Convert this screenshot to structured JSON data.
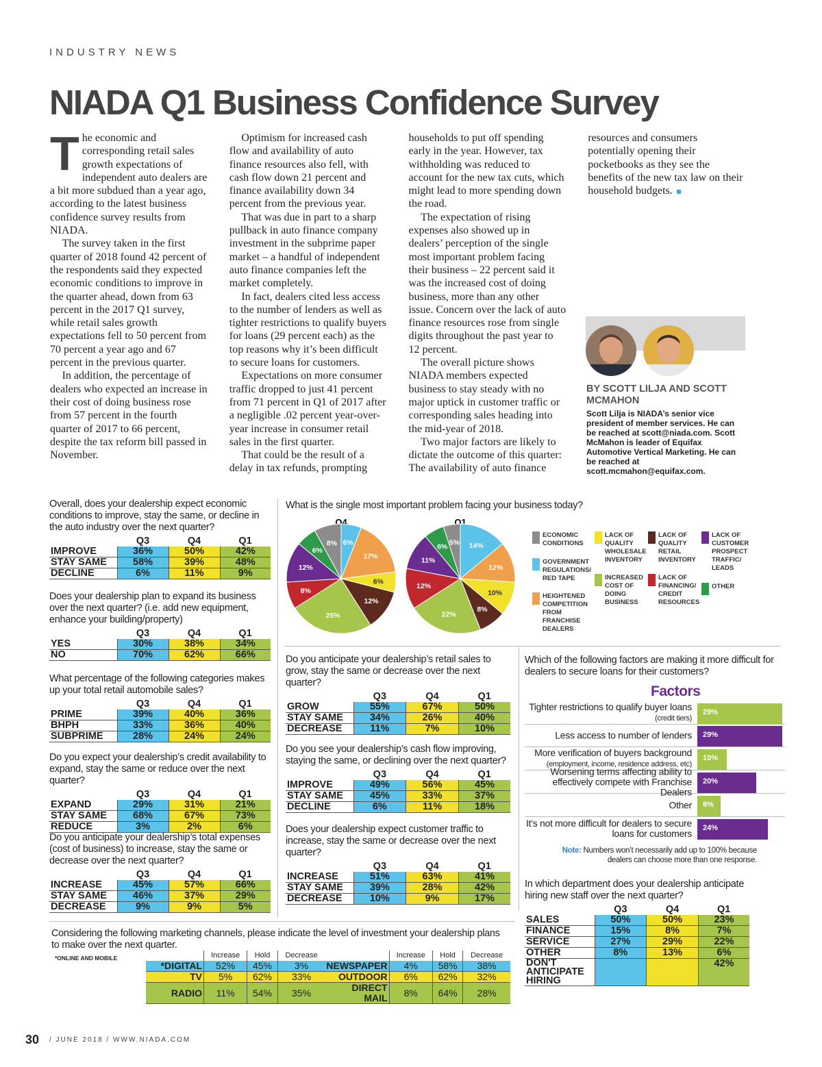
{
  "header": {
    "section": "INDUSTRY NEWS",
    "title": "NIADA Q1 Business Confidence Survey"
  },
  "article": {
    "paragraphs": [
      "The economic and corresponding retail sales growth expectations of independent auto dealers are a bit more subdued than a year ago, according to the latest business confidence survey results from NIADA.",
      "The survey taken in the first quarter of 2018 found 42 percent of the respondents said they expected economic conditions to improve in the quarter ahead, down from 63 percent in the 2017 Q1 survey, while retail sales growth expectations fell to 50 percent from 70 percent a year ago and 67 percent in the previous quarter.",
      "In addition, the percentage of dealers who expected an increase in their cost of doing business rose from 57 percent in the fourth quarter of 2017 to 66 percent, despite the tax reform bill passed in November.",
      "Optimism for increased cash flow and availability of auto finance resources also fell, with cash flow down 21 percent and finance availability down 34 percent from the previous year.",
      "That was due in part to a sharp pullback in auto finance company investment in the subprime paper market – a handful of independent auto finance companies left the market completely.",
      "In fact, dealers cited less access to the number of lenders as well as tighter restrictions to qualify buyers for loans (29 percent each) as the top reasons why it’s been difficult to secure loans for customers.",
      "Expectations on more consumer traffic dropped to just 41 percent from 71 percent in Q1 of 2017 after a negligible .02 percent year-over-year increase in consumer retail sales in the first quarter.",
      "That could be the result of a delay in tax refunds, prompting households to put off spending early in the year. However, tax withholding was reduced to account for the new tax cuts, which might lead to more spending down the road.",
      "The expectation of rising expenses also showed up in dealers’ perception of the single most important problem facing their business – 22 percent said it was the increased cost of doing business, more than any other issue. Concern over the lack of auto finance resources rose from single digits throughout the past year to 12 percent.",
      "The overall picture shows NIADA members expected business to stay steady with no major uptick in customer traffic or corresponding sales heading into the mid-year of 2018.",
      "Two major factors are likely to dictate the outcome of this quarter: The availability of auto finance resources and consumers potentially opening their pocketbooks as they see the benefits of the new tax law on their household budgets."
    ],
    "byline": "BY SCOTT LILJA AND SCOTT MCMAHON",
    "bio": "Scott Lilja is NIADA’s senior vice president of member services. He can be reached at scott@niada.com. Scott McMahon is leader of Equifax Automotive Vertical Marketing. He can be reached at scott.mcmahon@equifax.com."
  },
  "survey_colors": [
    "#5bc3e9",
    "#f1e12a",
    "#a5c64a"
  ],
  "tables": [
    {
      "question": "Overall, does your dealership expect economic conditions to improve, stay the same, or decline in the auto industry over the next quarter?",
      "columns": [
        "Q3",
        "Q4",
        "Q1"
      ],
      "rows": [
        {
          "label": "IMPROVE",
          "cells": [
            "36%",
            "50%",
            "42%"
          ]
        },
        {
          "label": "STAY SAME",
          "cells": [
            "58%",
            "39%",
            "48%"
          ]
        },
        {
          "label": "DECLINE",
          "cells": [
            "6%",
            "11%",
            "9%"
          ]
        }
      ]
    },
    {
      "question": "Does your dealership plan to expand its business over the next quarter? (i.e. add new equipment, enhance your building/property)",
      "columns": [
        "Q3",
        "Q4",
        "Q1"
      ],
      "rows": [
        {
          "label": "YES",
          "cells": [
            "30%",
            "38%",
            "34%"
          ]
        },
        {
          "label": "NO",
          "cells": [
            "70%",
            "62%",
            "66%"
          ]
        }
      ]
    },
    {
      "question": "What percentage of the following categories makes up your total retail automobile sales?",
      "columns": [
        "Q3",
        "Q4",
        "Q1"
      ],
      "rows": [
        {
          "label": "PRIME",
          "cells": [
            "39%",
            "40%",
            "36%"
          ]
        },
        {
          "label": "BHPH",
          "cells": [
            "33%",
            "36%",
            "40%"
          ]
        },
        {
          "label": "SUBPRIME",
          "cells": [
            "28%",
            "24%",
            "24%"
          ]
        }
      ]
    },
    {
      "question": "Do you expect your dealership’s credit availability to expand, stay the same or reduce over the next quarter?",
      "columns": [
        "Q3",
        "Q4",
        "Q1"
      ],
      "rows": [
        {
          "label": "EXPAND",
          "cells": [
            "29%",
            "31%",
            "21%"
          ]
        },
        {
          "label": "STAY SAME",
          "cells": [
            "68%",
            "67%",
            "73%"
          ]
        },
        {
          "label": "REDUCE",
          "cells": [
            "3%",
            "2%",
            "6%"
          ]
        }
      ]
    },
    {
      "question": "Do you anticipate your dealership’s total expenses (cost of business) to increase, stay the same or decrease over the next quarter?",
      "columns": [
        "Q3",
        "Q4",
        "Q1"
      ],
      "rows": [
        {
          "label": "INCREASE",
          "cells": [
            "45%",
            "57%",
            "66%"
          ]
        },
        {
          "label": "STAY SAME",
          "cells": [
            "46%",
            "37%",
            "29%"
          ]
        },
        {
          "label": "DECREASE",
          "cells": [
            "9%",
            "9%",
            "5%"
          ]
        }
      ]
    },
    {
      "question": "Do you anticipate your dealership’s retail sales to grow, stay the same or decrease over the next quarter?",
      "columns": [
        "Q3",
        "Q4",
        "Q1"
      ],
      "rows": [
        {
          "label": "GROW",
          "cells": [
            "55%",
            "67%",
            "50%"
          ]
        },
        {
          "label": "STAY SAME",
          "cells": [
            "34%",
            "26%",
            "40%"
          ]
        },
        {
          "label": "DECREASE",
          "cells": [
            "11%",
            "7%",
            "10%"
          ]
        }
      ]
    },
    {
      "question": "Do you see your dealership’s cash flow improving, staying the same, or declining over the next quarter?",
      "columns": [
        "Q3",
        "Q4",
        "Q1"
      ],
      "rows": [
        {
          "label": "IMPROVE",
          "cells": [
            "49%",
            "56%",
            "45%"
          ]
        },
        {
          "label": "STAY SAME",
          "cells": [
            "45%",
            "33%",
            "37%"
          ]
        },
        {
          "label": "DECLINE",
          "cells": [
            "6%",
            "11%",
            "18%"
          ]
        }
      ]
    },
    {
      "question": "Does your dealership expect customer traffic to increase, stay the same or decrease over the next quarter?",
      "columns": [
        "Q3",
        "Q4",
        "Q1"
      ],
      "rows": [
        {
          "label": "INCREASE",
          "cells": [
            "51%",
            "63%",
            "41%"
          ]
        },
        {
          "label": "STAY SAME",
          "cells": [
            "39%",
            "28%",
            "42%"
          ]
        },
        {
          "label": "DECREASE",
          "cells": [
            "10%",
            "9%",
            "17%"
          ]
        }
      ]
    },
    {
      "question": "In which department does your dealership anticipate hiring new staff over the next quarter?",
      "columns": [
        "Q3",
        "Q4",
        "Q1"
      ],
      "rows": [
        {
          "label": "SALES",
          "cells": [
            "50%",
            "50%",
            "23%"
          ]
        },
        {
          "label": "FINANCE",
          "cells": [
            "15%",
            "8%",
            "7%"
          ]
        },
        {
          "label": "SERVICE",
          "cells": [
            "27%",
            "29%",
            "22%"
          ]
        },
        {
          "label": "OTHER",
          "cells": [
            "8%",
            "13%",
            "6%"
          ]
        },
        {
          "label": "DON'T ANTICIPATE HIRING",
          "cells": [
            null,
            null,
            "42%"
          ]
        }
      ]
    }
  ],
  "pie_chart": {
    "question": "What is the single most important problem facing your business today?",
    "categories": [
      "GOVERNMENT REGULATIONS/ RED TAPE",
      "HEIGHTENED COMPETITION FROM FRANCHISE DEALERS",
      "LACK OF QUALITY WHOLESALE INVENTORY",
      "LACK OF QUALITY RETAIL INVENTORY",
      "INCREASED COST OF DOING BUSINESS",
      "LACK OF FINANCING/ CREDIT RESOURCES",
      "LACK OF CUSTOMER PROSPECT TRAFFIC/ LEADS",
      "OTHER",
      "ECONOMIC CONDITIONS"
    ],
    "colors": [
      "#5bc3e9",
      "#f0a04b",
      "#f1e12a",
      "#5c2a1e",
      "#a5c64a",
      "#c0282d",
      "#6a2c8e",
      "#2e9a4a",
      "#8c8c8c"
    ],
    "pies": [
      {
        "title": "Q4",
        "values": [
          6,
          17,
          6,
          12,
          25,
          8,
          12,
          6,
          8
        ],
        "value_labels": [
          "6%",
          "17%",
          "6%",
          "12%",
          "25%",
          "8%",
          "12%",
          "6%",
          "8%"
        ]
      },
      {
        "title": "Q1",
        "values": [
          14,
          12,
          10,
          8,
          22,
          12,
          11,
          6,
          5
        ],
        "value_labels": [
          "14%",
          "12%",
          "10%",
          "8%",
          "22%",
          "12%",
          "11%",
          "6%",
          "5%"
        ]
      }
    ]
  },
  "factors": {
    "question": "Which of the following factors are making it more difficult for dealers to secure loans for their customers?",
    "title": "Factors",
    "items": [
      {
        "label": "Tighter restrictions to qualify buyer loans",
        "note": "(credit tiers)"
      },
      {
        "label": "Less access to number of lenders"
      },
      {
        "label": "More verification of buyers background",
        "note": "(employment, income, residence address, etc)"
      },
      {
        "label": "Worsening terms affecting ability to effectively compete with Franchise Dealers"
      },
      {
        "label": "Other"
      },
      {
        "label": "It’s not more difficult for dealers to secure loans for customers"
      }
    ],
    "values": [
      29,
      29,
      10,
      20,
      8,
      24
    ],
    "value_labels": [
      "29%",
      "29%",
      "10%",
      "20%",
      "8%",
      "24%"
    ],
    "colors": [
      "#a5c64a",
      "#6a2c8e",
      "#a5c64a",
      "#6a2c8e",
      "#a5c64a",
      "#6a2c8e"
    ],
    "note_label": "Note:",
    "note": "Numbers won’t necessarily add up to 100% because dealers can choose more than one response."
  },
  "marketing": {
    "question": "Considering the following marketing channels, please indicate the level of investment your dealership plans to make over the next quarter.",
    "footnote": "*ONLINE AND MOBILE",
    "columns": [
      "Increase",
      "Hold",
      "Decrease"
    ],
    "groups": [
      [
        {
          "label": "*DIGITAL",
          "cells": [
            "52%",
            "45%",
            "3%"
          ]
        },
        {
          "label": "TV",
          "cells": [
            "5%",
            "62%",
            "33%"
          ]
        },
        {
          "label": "RADIO",
          "cells": [
            "11%",
            "54%",
            "35%"
          ]
        }
      ],
      [
        {
          "label": "NEWSPAPER",
          "cells": [
            "4%",
            "58%",
            "38%"
          ]
        },
        {
          "label": "OUTDOOR",
          "cells": [
            "6%",
            "62%",
            "32%"
          ]
        },
        {
          "label": "DIRECT MAIL",
          "cells": [
            "8%",
            "64%",
            "28%"
          ]
        }
      ]
    ]
  },
  "footer": {
    "page": "30",
    "text": "/ JUNE 2018 / WWW.NIADA.COM"
  }
}
